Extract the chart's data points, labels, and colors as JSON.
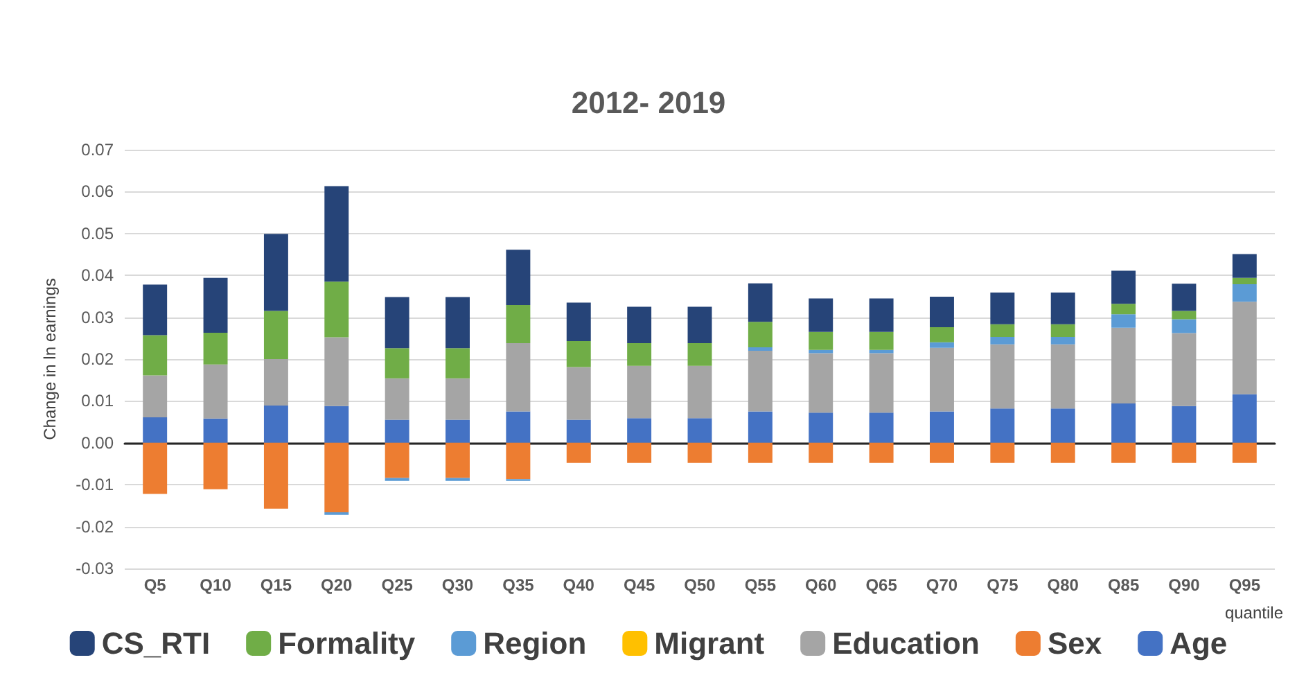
{
  "chart_data": {
    "type": "bar",
    "title": "2012- 2019",
    "xlabel": "quantile",
    "ylabel": "Change in ln earnings",
    "categories": [
      "Q5",
      "Q10",
      "Q15",
      "Q20",
      "Q25",
      "Q30",
      "Q35",
      "Q40",
      "Q45",
      "Q50",
      "Q55",
      "Q60",
      "Q65",
      "Q70",
      "Q75",
      "Q80",
      "Q85",
      "Q90",
      "Q95"
    ],
    "stacked": true,
    "series": [
      {
        "name": "Age",
        "color": "#4472c4",
        "values": [
          0.0061,
          0.0058,
          0.0089,
          0.0088,
          0.0055,
          0.0055,
          0.0075,
          0.0055,
          0.0059,
          0.0059,
          0.0075,
          0.0072,
          0.0072,
          0.0075,
          0.0082,
          0.0082,
          0.0094,
          0.0088,
          0.0116
        ]
      },
      {
        "name": "Sex",
        "color": "#ed7d31",
        "values": [
          -0.0122,
          -0.0111,
          -0.0157,
          -0.0166,
          -0.0084,
          -0.0084,
          -0.0087,
          -0.0048,
          -0.0048,
          -0.0048,
          -0.0048,
          -0.0048,
          -0.0048,
          -0.0048,
          -0.0048,
          -0.0048,
          -0.0048,
          -0.0048,
          -0.0048
        ]
      },
      {
        "name": "Education",
        "color": "#a5a5a5",
        "values": [
          0.01,
          0.0129,
          0.0111,
          0.0164,
          0.0099,
          0.0099,
          0.0163,
          0.0126,
          0.0125,
          0.0125,
          0.0145,
          0.0142,
          0.0142,
          0.0152,
          0.0153,
          0.0153,
          0.0181,
          0.0174,
          0.0221
        ]
      },
      {
        "name": "Migrant",
        "color": "#ffc000",
        "values": [
          0,
          0,
          0,
          0,
          0,
          0,
          0,
          0,
          0,
          0,
          0,
          0,
          0,
          0,
          0,
          0,
          0,
          0,
          0
        ]
      },
      {
        "name": "Region",
        "color": "#5b9bd5",
        "values": [
          0,
          0,
          0,
          -0.0006,
          -0.0007,
          -0.0007,
          -0.0004,
          0,
          0,
          0,
          0.0008,
          0.0008,
          0.0008,
          0.0013,
          0.0018,
          0.0018,
          0.0032,
          0.0033,
          0.0042
        ]
      },
      {
        "name": "Formality",
        "color": "#70ad47",
        "values": [
          0.0096,
          0.0076,
          0.0115,
          0.0133,
          0.0072,
          0.0072,
          0.0091,
          0.0062,
          0.0054,
          0.0054,
          0.0061,
          0.0043,
          0.0043,
          0.0036,
          0.003,
          0.003,
          0.0025,
          0.002,
          0.0015
        ]
      },
      {
        "name": "CS_RTI",
        "color": "#264478",
        "values": [
          0.0121,
          0.0131,
          0.0184,
          0.0228,
          0.0122,
          0.0122,
          0.0132,
          0.0092,
          0.0087,
          0.0087,
          0.0092,
          0.008,
          0.008,
          0.0073,
          0.0076,
          0.0076,
          0.0079,
          0.0065,
          0.0057
        ]
      }
    ],
    "ylim": [
      -0.03,
      0.07
    ],
    "yticks": [
      {
        "value": -0.03,
        "label": "-0.03"
      },
      {
        "value": -0.02,
        "label": "-0.02"
      },
      {
        "value": -0.01,
        "label": "-0.01"
      },
      {
        "value": 0,
        "label": "0.00"
      },
      {
        "value": 0.01,
        "label": "0.01"
      },
      {
        "value": 0.02,
        "label": "0.02"
      },
      {
        "value": 0.03,
        "label": "0.03"
      },
      {
        "value": 0.04,
        "label": "0.04"
      },
      {
        "value": 0.05,
        "label": "0.05"
      },
      {
        "value": 0.06,
        "label": "0.06"
      },
      {
        "value": 0.07,
        "label": "0.07"
      }
    ],
    "grid": "y",
    "legend": "bottom"
  }
}
